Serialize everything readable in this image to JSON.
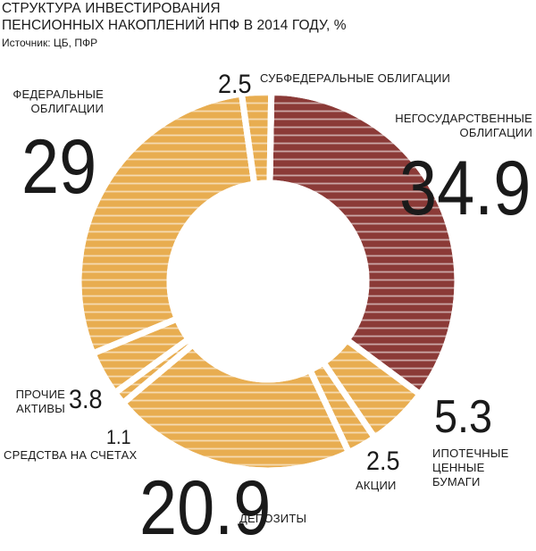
{
  "chart_data": {
    "type": "pie",
    "title_lines": [
      "СТРУКТУРА ИНВЕСТИРОВАНИЯ",
      "ПЕНСИОННЫХ НАКОПЛЕНИЙ НПФ В 2014 ГОДУ, %"
    ],
    "source": "Источник: ЦБ, ПФР",
    "slices": [
      {
        "value": 34.9,
        "value_label": "34.9",
        "label_lines": [
          "НЕГОСУДАРСТВЕННЫЕ",
          "ОБЛИГАЦИИ"
        ],
        "color": "#8b3a37"
      },
      {
        "value": 5.3,
        "value_label": "5.3",
        "label_lines": [
          "ИПОТЕЧНЫЕ",
          "ЦЕННЫЕ",
          "БУМАГИ"
        ],
        "color": "#e8ad50"
      },
      {
        "value": 2.5,
        "value_label": "2.5",
        "label_lines": [
          "АКЦИИ"
        ],
        "color": "#e8ad50"
      },
      {
        "value": 20.9,
        "value_label": "20.9",
        "label_lines": [
          "ДЕПОЗИТЫ"
        ],
        "color": "#e8ad50"
      },
      {
        "value": 1.1,
        "value_label": "1.1",
        "label_lines": [
          "СРЕДСТВА НА СЧЕТАХ"
        ],
        "color": "#e8ad50"
      },
      {
        "value": 3.8,
        "value_label": "3.8",
        "label_lines": [
          "ПРОЧИЕ",
          "АКТИВЫ"
        ],
        "color": "#e8ad50"
      },
      {
        "value": 29,
        "value_label": "29",
        "label_lines": [
          "ФЕДЕРАЛЬНЫЕ",
          "ОБЛИГАЦИИ"
        ],
        "color": "#e8ad50"
      },
      {
        "value": 2.5,
        "value_label": "2.5",
        "label_lines": [
          "СУБФЕДЕРАЛЬНЫЕ ОБЛИГАЦИИ"
        ],
        "color": "#e8ad50"
      }
    ],
    "colors": {
      "accent": "#8b3a37",
      "main": "#e8ad50",
      "stripe": "#ffffff",
      "text": "#1a1a1a"
    }
  }
}
